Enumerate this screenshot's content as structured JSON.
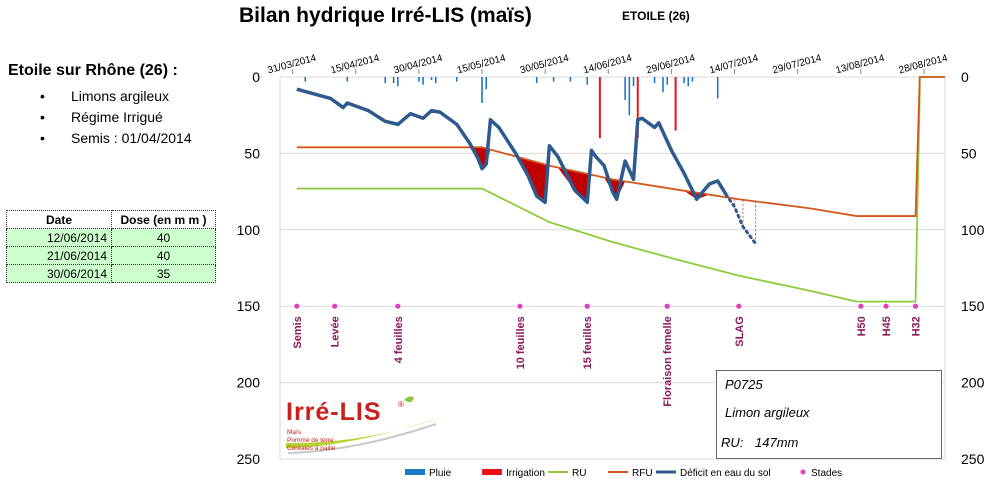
{
  "title": "Bilan hydrique Irré-LIS (maïs)",
  "station": "ETOILE  (26)",
  "site": {
    "title": "Etoile sur Rhône (26) :",
    "items": [
      "Limons  argileux",
      "Régime  Irrigué",
      "Semis  : 01/04/2014"
    ]
  },
  "irrigation_table": {
    "headers": [
      "Date",
      "Dose (en m m )"
    ],
    "rows": [
      [
        "12/06/2014",
        "40"
      ],
      [
        "21/06/2014",
        "40"
      ],
      [
        "30/06/2014",
        "35"
      ]
    ]
  },
  "info_box": {
    "code": "P0725",
    "soil": "Limon argileux",
    "ru_label": "RU:",
    "ru_value": "147mm"
  },
  "logo": {
    "name": "Irré-LIS",
    "mark": "®",
    "lines": [
      "Maïs",
      "Pomme de terre",
      "Céréales à paille"
    ]
  },
  "colors": {
    "pluie": "#1f77c8",
    "irrigation": "#e8141c",
    "ru": "#8ccc3c",
    "rfu": "#d4581e",
    "deficit": "#2e5a8e",
    "stades": "#e040c0",
    "stage_text": "#8b1a5a",
    "stress_fill": "#c00000"
  },
  "chart_data": {
    "type": "line",
    "x_start": "2014-03-28",
    "x_end": "2014-09-02",
    "y_axis": {
      "min": 0,
      "max": 250,
      "ticks": [
        0,
        50,
        100,
        150,
        200,
        250
      ],
      "inverted": true,
      "both_sides": true
    },
    "date_ticks": [
      "31/03/2014",
      "15/04/2014",
      "30/04/2014",
      "15/05/2014",
      "30/05/2014",
      "14/06/2014",
      "29/06/2014",
      "14/07/2014",
      "29/07/2014",
      "13/08/2014",
      "28/08/2014"
    ],
    "grid": true,
    "series": [
      {
        "name": "RU",
        "points": [
          [
            "2014-04-01",
            73
          ],
          [
            "2014-05-15",
            73
          ],
          [
            "2014-05-31",
            95
          ],
          [
            "2014-06-15",
            108
          ],
          [
            "2014-07-01",
            120
          ],
          [
            "2014-07-15",
            130
          ],
          [
            "2014-08-01",
            140
          ],
          [
            "2014-08-12",
            147
          ],
          [
            "2014-08-26",
            147
          ],
          [
            "2014-08-27",
            10
          ],
          [
            "2014-08-27",
            0
          ],
          [
            "2014-09-02",
            0
          ]
        ]
      },
      {
        "name": "RFU",
        "points": [
          [
            "2014-04-01",
            46
          ],
          [
            "2014-05-15",
            46
          ],
          [
            "2014-05-31",
            58
          ],
          [
            "2014-06-15",
            67
          ],
          [
            "2014-07-01",
            74
          ],
          [
            "2014-07-15",
            80
          ],
          [
            "2014-08-01",
            86
          ],
          [
            "2014-08-12",
            91
          ],
          [
            "2014-08-26",
            91
          ],
          [
            "2014-08-27",
            0
          ],
          [
            "2014-09-02",
            0
          ]
        ]
      },
      {
        "name": "Déficit en eau du sol",
        "points": [
          [
            "2014-04-01",
            8
          ],
          [
            "2014-04-05",
            11
          ],
          [
            "2014-04-09",
            14
          ],
          [
            "2014-04-12",
            20
          ],
          [
            "2014-04-13",
            17
          ],
          [
            "2014-04-18",
            22
          ],
          [
            "2014-04-22",
            29
          ],
          [
            "2014-04-25",
            31
          ],
          [
            "2014-04-28",
            24
          ],
          [
            "2014-05-01",
            27
          ],
          [
            "2014-05-03",
            22
          ],
          [
            "2014-05-05",
            23
          ],
          [
            "2014-05-09",
            31
          ],
          [
            "2014-05-12",
            43
          ],
          [
            "2014-05-14",
            53
          ],
          [
            "2014-05-15",
            60
          ],
          [
            "2014-05-16",
            57
          ],
          [
            "2014-05-17",
            28
          ],
          [
            "2014-05-19",
            33
          ],
          [
            "2014-05-23",
            50
          ],
          [
            "2014-05-26",
            65
          ],
          [
            "2014-05-28",
            78
          ],
          [
            "2014-05-30",
            82
          ],
          [
            "2014-05-31",
            45
          ],
          [
            "2014-06-02",
            52
          ],
          [
            "2014-06-06",
            74
          ],
          [
            "2014-06-09",
            82
          ],
          [
            "2014-06-10",
            48
          ],
          [
            "2014-06-11",
            52
          ],
          [
            "2014-06-13",
            58
          ],
          [
            "2014-06-15",
            75
          ],
          [
            "2014-06-16",
            80
          ],
          [
            "2014-06-18",
            55
          ],
          [
            "2014-06-20",
            67
          ],
          [
            "2014-06-21",
            28
          ],
          [
            "2014-06-22",
            27
          ],
          [
            "2014-06-25",
            33
          ],
          [
            "2014-06-26",
            30
          ],
          [
            "2014-06-29",
            48
          ],
          [
            "2014-07-02",
            63
          ],
          [
            "2014-07-05",
            80
          ],
          [
            "2014-07-08",
            70
          ],
          [
            "2014-07-10",
            68
          ],
          [
            "2014-07-12",
            77
          ]
        ]
      },
      {
        "name": "Déficit en eau du sol (prévision)",
        "points": [
          [
            "2014-07-12",
            77
          ],
          [
            "2014-07-14",
            85
          ],
          [
            "2014-07-16",
            98
          ],
          [
            "2014-07-19",
            109
          ]
        ]
      }
    ],
    "pluie": [
      [
        "2014-04-03",
        3
      ],
      [
        "2014-04-13",
        3
      ],
      [
        "2014-04-22",
        4
      ],
      [
        "2014-04-24",
        4
      ],
      [
        "2014-04-25",
        6
      ],
      [
        "2014-04-30",
        3
      ],
      [
        "2014-05-01",
        5
      ],
      [
        "2014-05-03",
        2
      ],
      [
        "2014-05-04",
        4
      ],
      [
        "2014-05-09",
        3
      ],
      [
        "2014-05-15",
        17
      ],
      [
        "2014-05-16",
        8
      ],
      [
        "2014-05-28",
        4
      ],
      [
        "2014-06-01",
        3
      ],
      [
        "2014-06-05",
        3
      ],
      [
        "2014-06-09",
        5
      ],
      [
        "2014-06-18",
        15
      ],
      [
        "2014-06-19",
        25
      ],
      [
        "2014-06-20",
        6
      ],
      [
        "2014-06-25",
        4
      ],
      [
        "2014-06-27",
        10
      ],
      [
        "2014-06-28",
        5
      ],
      [
        "2014-06-30",
        8
      ],
      [
        "2014-07-02",
        4
      ],
      [
        "2014-07-03",
        6
      ],
      [
        "2014-07-04",
        3
      ],
      [
        "2014-07-10",
        14
      ]
    ],
    "irrigation": [
      [
        "2014-06-12",
        40
      ],
      [
        "2014-06-21",
        40
      ],
      [
        "2014-06-30",
        35
      ]
    ],
    "stades": [
      {
        "label": "Semis",
        "date": "2014-04-01"
      },
      {
        "label": "Levée",
        "date": "2014-04-10"
      },
      {
        "label": "4 feuilles",
        "date": "2014-04-25"
      },
      {
        "label": "10 feuilles",
        "date": "2014-05-24"
      },
      {
        "label": "15 feuilles",
        "date": "2014-06-09"
      },
      {
        "label": "Floraison femelle",
        "date": "2014-06-28"
      },
      {
        "label": "SLAG",
        "date": "2014-07-15"
      },
      {
        "label": "H50",
        "date": "2014-08-13"
      },
      {
        "label": "H45",
        "date": "2014-08-19"
      },
      {
        "label": "H32",
        "date": "2014-08-26"
      }
    ],
    "stades_y": 150,
    "legend": [
      "Pluie",
      "Irrigation",
      "RU",
      "RFU",
      "Déficit en eau du sol",
      "Stades"
    ],
    "legend_position": "bottom"
  }
}
